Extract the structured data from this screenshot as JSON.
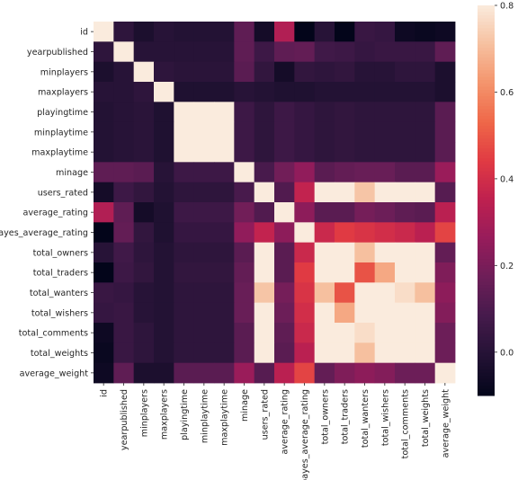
{
  "chart_data": {
    "type": "heatmap",
    "title": "",
    "xlabel": "",
    "ylabel": "",
    "labels": [
      "id",
      "yearpublished",
      "minplayers",
      "maxplayers",
      "playingtime",
      "minplaytime",
      "maxplaytime",
      "minage",
      "users_rated",
      "average_rating",
      "bayes_average_rating",
      "total_owners",
      "total_traders",
      "total_wanters",
      "total_wishers",
      "total_comments",
      "total_weights",
      "average_weight"
    ],
    "matrix": [
      [
        1.0,
        0.02,
        -0.03,
        0.0,
        -0.01,
        -0.01,
        -0.01,
        0.14,
        -0.05,
        0.32,
        -0.1,
        0.0,
        -0.1,
        0.05,
        0.04,
        -0.07,
        -0.08,
        -0.07
      ],
      [
        0.02,
        1.0,
        0.0,
        0.0,
        0.0,
        0.0,
        0.0,
        0.14,
        0.06,
        0.14,
        0.15,
        0.07,
        0.06,
        0.04,
        0.05,
        0.05,
        0.05,
        0.14
      ],
      [
        -0.03,
        0.0,
        1.0,
        0.02,
        0.01,
        0.01,
        0.01,
        0.13,
        0.03,
        -0.05,
        0.03,
        0.02,
        0.03,
        0.0,
        0.0,
        0.02,
        0.02,
        -0.03
      ],
      [
        0.0,
        0.0,
        0.02,
        1.0,
        -0.02,
        -0.02,
        -0.02,
        0.0,
        -0.01,
        -0.02,
        -0.02,
        -0.01,
        -0.01,
        -0.01,
        -0.01,
        -0.01,
        -0.01,
        -0.03
      ],
      [
        -0.01,
        0.0,
        0.01,
        -0.02,
        1.0,
        1.0,
        1.0,
        0.06,
        0.02,
        0.06,
        0.04,
        0.02,
        0.03,
        0.02,
        0.02,
        0.02,
        0.02,
        0.13
      ],
      [
        -0.01,
        0.0,
        0.01,
        -0.02,
        1.0,
        1.0,
        1.0,
        0.06,
        0.02,
        0.06,
        0.04,
        0.02,
        0.03,
        0.02,
        0.02,
        0.02,
        0.02,
        0.13
      ],
      [
        -0.01,
        0.0,
        0.01,
        -0.02,
        1.0,
        1.0,
        1.0,
        0.06,
        0.02,
        0.06,
        0.04,
        0.02,
        0.03,
        0.02,
        0.02,
        0.02,
        0.02,
        0.13
      ],
      [
        0.14,
        0.14,
        0.13,
        0.0,
        0.06,
        0.06,
        0.06,
        1.0,
        0.09,
        0.18,
        0.25,
        0.13,
        0.15,
        0.16,
        0.16,
        0.13,
        0.13,
        0.27
      ],
      [
        -0.05,
        0.06,
        0.03,
        -0.01,
        0.02,
        0.02,
        0.02,
        0.09,
        1.0,
        0.11,
        0.36,
        0.98,
        0.93,
        0.72,
        0.89,
        0.95,
        0.95,
        0.12
      ],
      [
        0.32,
        0.14,
        -0.05,
        -0.02,
        0.06,
        0.06,
        0.06,
        0.18,
        0.11,
        1.0,
        0.24,
        0.13,
        0.13,
        0.19,
        0.17,
        0.14,
        0.13,
        0.34
      ],
      [
        -0.1,
        0.15,
        0.03,
        -0.02,
        0.04,
        0.04,
        0.04,
        0.25,
        0.36,
        0.24,
        1.0,
        0.38,
        0.44,
        0.42,
        0.4,
        0.38,
        0.34,
        0.46
      ],
      [
        0.0,
        0.07,
        0.02,
        -0.01,
        0.02,
        0.02,
        0.02,
        0.13,
        0.98,
        0.13,
        0.38,
        1.0,
        0.97,
        0.71,
        0.91,
        0.98,
        0.98,
        0.15
      ],
      [
        -0.1,
        0.06,
        0.03,
        -0.01,
        0.03,
        0.03,
        0.03,
        0.15,
        0.93,
        0.13,
        0.44,
        0.97,
        1.0,
        0.49,
        0.66,
        0.93,
        0.93,
        0.21
      ],
      [
        0.05,
        0.04,
        0.0,
        -0.01,
        0.02,
        0.02,
        0.02,
        0.16,
        0.72,
        0.19,
        0.42,
        0.71,
        0.49,
        1.0,
        0.94,
        0.77,
        0.71,
        0.24
      ],
      [
        0.04,
        0.05,
        0.0,
        -0.01,
        0.02,
        0.02,
        0.02,
        0.16,
        0.89,
        0.17,
        0.4,
        0.91,
        0.66,
        0.94,
        1.0,
        0.88,
        0.87,
        0.22
      ],
      [
        -0.07,
        0.05,
        0.02,
        -0.01,
        0.02,
        0.02,
        0.02,
        0.13,
        0.95,
        0.14,
        0.38,
        0.98,
        0.93,
        0.77,
        0.88,
        1.0,
        0.99,
        0.17
      ],
      [
        -0.08,
        0.05,
        0.02,
        -0.01,
        0.02,
        0.02,
        0.02,
        0.13,
        0.95,
        0.13,
        0.34,
        0.98,
        0.93,
        0.71,
        0.87,
        0.99,
        1.0,
        0.17
      ],
      [
        -0.07,
        0.14,
        -0.03,
        -0.03,
        0.13,
        0.13,
        0.13,
        0.27,
        0.12,
        0.34,
        0.46,
        0.15,
        0.21,
        0.24,
        0.22,
        0.17,
        0.17,
        1.0
      ]
    ],
    "colorbar": {
      "min": -0.1,
      "max": 0.8,
      "ticks": [
        "0.0",
        "0.2",
        "0.4",
        "0.6",
        "0.8"
      ],
      "colormap": "rocket"
    },
    "grid": false
  }
}
